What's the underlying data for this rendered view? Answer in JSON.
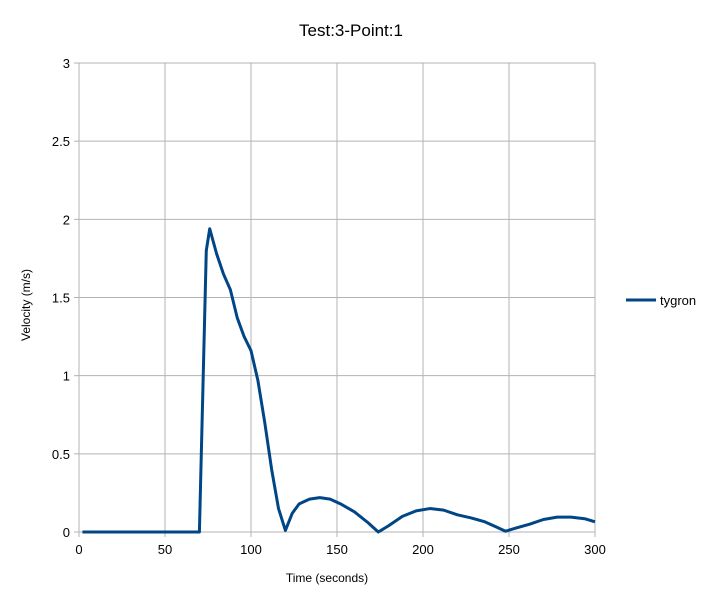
{
  "chart_data": {
    "type": "line",
    "title": "Test:3-Point:1",
    "x_label": "Time (seconds)",
    "y_label": "Velocity (m/s)",
    "x": [
      2,
      70,
      74,
      76,
      80,
      84,
      88,
      92,
      96,
      100,
      104,
      108,
      112,
      116,
      120,
      124,
      128,
      134,
      140,
      146,
      152,
      160,
      168,
      174,
      180,
      188,
      196,
      204,
      212,
      220,
      228,
      236,
      242,
      248,
      254,
      262,
      270,
      278,
      286,
      294,
      300
    ],
    "series": [
      {
        "name": "tygron",
        "color": "#004586",
        "values": [
          0,
          0,
          1.8,
          1.94,
          1.78,
          1.65,
          1.55,
          1.37,
          1.25,
          1.16,
          0.97,
          0.7,
          0.4,
          0.15,
          0.01,
          0.12,
          0.18,
          0.21,
          0.22,
          0.21,
          0.18,
          0.13,
          0.06,
          0,
          0.04,
          0.1,
          0.135,
          0.15,
          0.14,
          0.11,
          0.09,
          0.065,
          0.035,
          0.005,
          0.025,
          0.05,
          0.08,
          0.095,
          0.095,
          0.085,
          0.065
        ]
      }
    ],
    "xlim": [
      0,
      300
    ],
    "xticks": [
      0,
      50,
      100,
      150,
      200,
      250,
      300
    ],
    "ylim": [
      0,
      3
    ],
    "yticks": [
      0,
      0.5,
      1,
      1.5,
      2,
      2.5,
      3
    ],
    "grid": true,
    "legend": "right"
  }
}
